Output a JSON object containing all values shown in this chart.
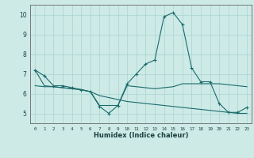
{
  "xlabel": "Humidex (Indice chaleur)",
  "x": [
    0,
    1,
    2,
    3,
    4,
    5,
    6,
    7,
    8,
    9,
    10,
    11,
    12,
    13,
    14,
    15,
    16,
    17,
    18,
    19,
    20,
    21,
    22,
    23
  ],
  "line1": [
    7.2,
    6.9,
    6.4,
    6.4,
    6.3,
    6.2,
    6.1,
    5.35,
    5.0,
    5.4,
    6.5,
    7.0,
    7.5,
    7.7,
    9.9,
    10.1,
    9.5,
    7.3,
    6.6,
    6.6,
    5.5,
    5.05,
    5.05,
    5.3
  ],
  "line2": [
    7.2,
    6.4,
    6.35,
    6.3,
    6.25,
    6.2,
    6.1,
    5.9,
    5.8,
    5.7,
    5.6,
    5.55,
    5.5,
    5.45,
    5.4,
    5.35,
    5.3,
    5.25,
    5.2,
    5.15,
    5.1,
    5.05,
    5.0,
    5.0
  ],
  "line3": [
    6.4,
    6.35,
    6.35,
    6.3,
    6.25,
    6.2,
    6.1,
    5.4,
    5.4,
    5.4,
    6.4,
    6.35,
    6.3,
    6.25,
    6.3,
    6.35,
    6.5,
    6.5,
    6.5,
    6.5,
    6.5,
    6.45,
    6.4,
    6.35
  ],
  "bg_color": "#cdeae7",
  "grid_color": "#aad4d0",
  "line_color": "#1a6b6b",
  "ylim": [
    4.5,
    10.5
  ],
  "xlim": [
    -0.5,
    23.5
  ],
  "yticks": [
    5,
    6,
    7,
    8,
    9,
    10
  ],
  "xticks": [
    0,
    1,
    2,
    3,
    4,
    5,
    6,
    7,
    8,
    9,
    10,
    11,
    12,
    13,
    14,
    15,
    16,
    17,
    18,
    19,
    20,
    21,
    22,
    23
  ]
}
